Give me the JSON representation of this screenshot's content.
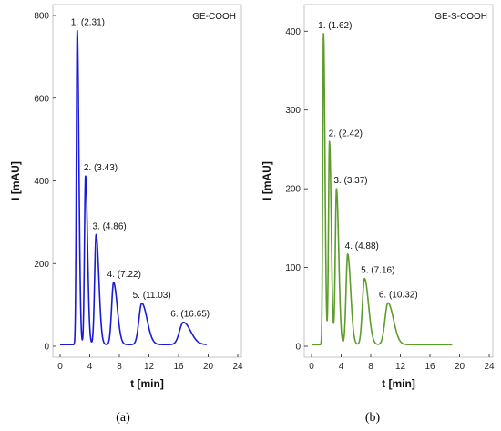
{
  "chart_data": [
    {
      "type": "line",
      "panel": "(a)",
      "sample": "GE-COOH",
      "xlabel": "t [min]",
      "ylabel": "I [mAU]",
      "xlim": [
        0,
        24
      ],
      "ylim": [
        0,
        800
      ],
      "xticks": [
        0,
        4,
        8,
        12,
        16,
        20,
        24
      ],
      "yticks": [
        0,
        200,
        400,
        600,
        800
      ],
      "color": "#1a1ad6",
      "baseline": 4,
      "trace_end": 19.8,
      "peaks": [
        {
          "label": "1. (2.31)",
          "t": 2.31,
          "height": 760,
          "width": 0.15
        },
        {
          "label": "2. (3.43)",
          "t": 3.43,
          "height": 408,
          "width": 0.18
        },
        {
          "label": "3. (4.86)",
          "t": 4.86,
          "height": 266,
          "width": 0.25
        },
        {
          "label": "4. (7.22)",
          "t": 7.22,
          "height": 150,
          "width": 0.33
        },
        {
          "label": "5. (11.03)",
          "t": 11.03,
          "height": 100,
          "width": 0.48
        },
        {
          "label": "6. (16.65)",
          "t": 16.65,
          "height": 54,
          "width": 0.65
        }
      ]
    },
    {
      "type": "line",
      "panel": "(b)",
      "sample": "GE-S-COOH",
      "xlabel": "t [min]",
      "ylabel": "I [mAU]",
      "xlim": [
        0,
        24
      ],
      "ylim": [
        0,
        420
      ],
      "xticks": [
        0,
        4,
        8,
        12,
        16,
        20,
        24
      ],
      "yticks": [
        0,
        100,
        200,
        300,
        400
      ],
      "color": "#5e9c2c",
      "baseline": 2,
      "trace_end": 19.0,
      "peaks": [
        {
          "label": "1. (1.62)",
          "t": 1.62,
          "height": 395,
          "width": 0.13
        },
        {
          "label": "2. (2.42)",
          "t": 2.42,
          "height": 258,
          "width": 0.16
        },
        {
          "label": "3. (3.37)",
          "t": 3.37,
          "height": 198,
          "width": 0.2
        },
        {
          "label": "4. (4.88)",
          "t": 4.88,
          "height": 115,
          "width": 0.27
        },
        {
          "label": "5. (7.16)",
          "t": 7.16,
          "height": 84,
          "width": 0.36
        },
        {
          "label": "6. (10.32)",
          "t": 10.32,
          "height": 53,
          "width": 0.5
        }
      ]
    }
  ]
}
